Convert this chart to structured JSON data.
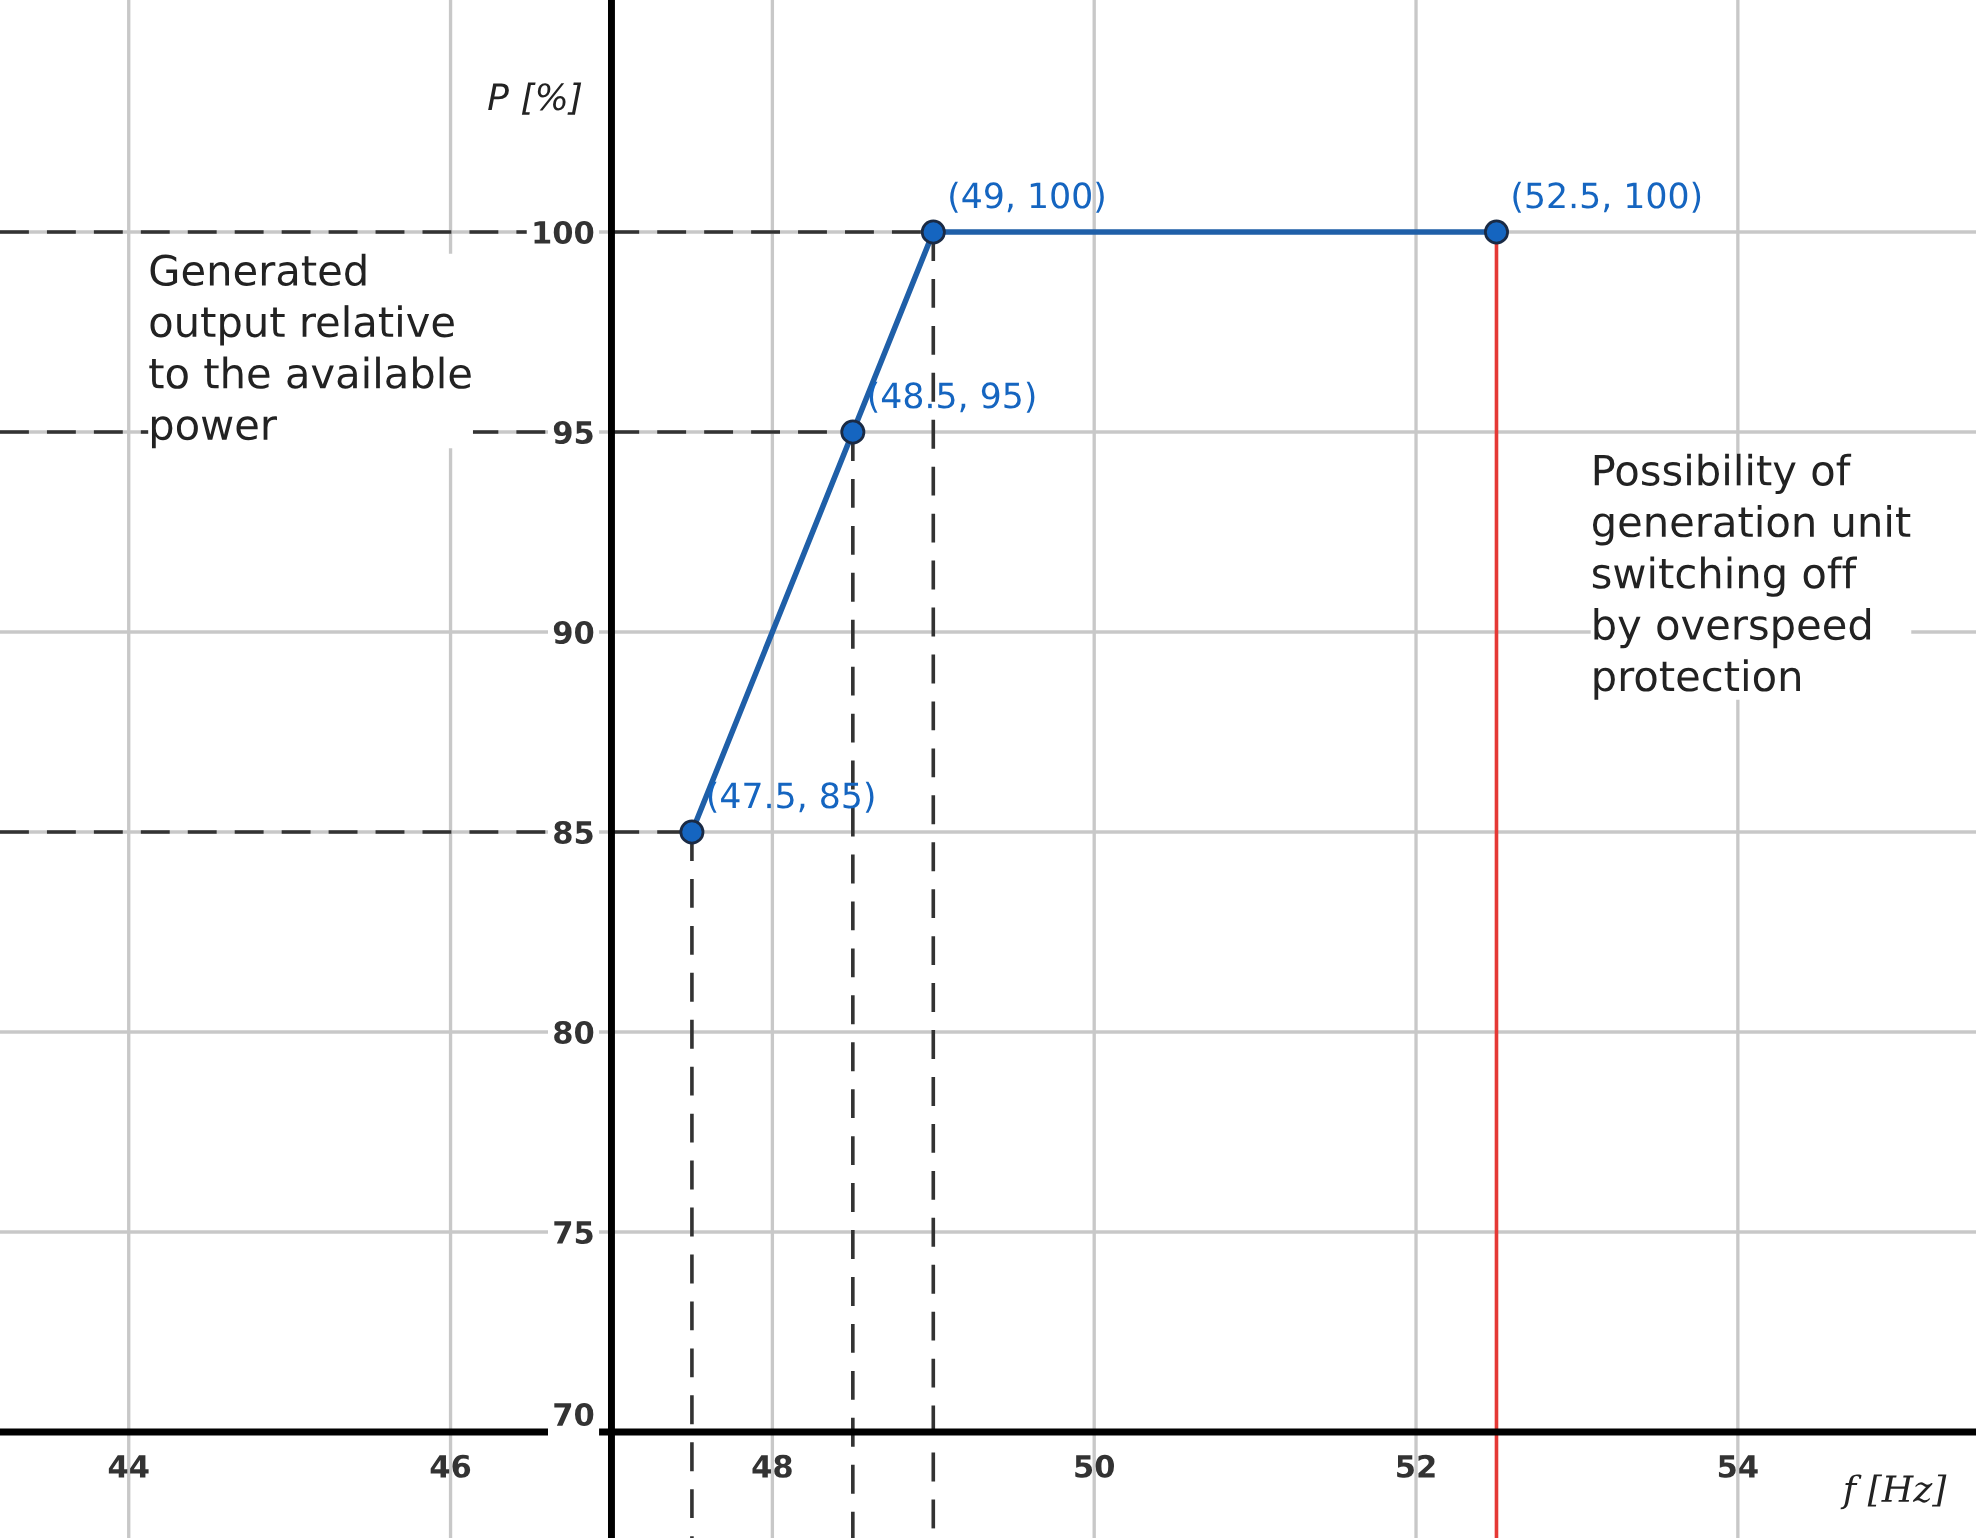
{
  "chart_data": {
    "type": "line",
    "xlabel": "f [Hz]",
    "ylabel": "P [%]",
    "xlim": [
      43.2,
      55.48
    ],
    "ylim": [
      67.35,
      105.8
    ],
    "xticks": [
      44,
      46,
      48,
      50,
      52,
      54
    ],
    "yticks": [
      70,
      75,
      80,
      85,
      90,
      95,
      100
    ],
    "grid": true,
    "series": [
      {
        "color": "#1f5fa8",
        "x": [
          47.5,
          48.5,
          49,
          52.5
        ],
        "values": [
          85,
          95,
          100,
          100
        ],
        "marker": "circle",
        "line_style": "solid"
      },
      {
        "color": "#333333",
        "x": [
          43.2,
          47.5
        ],
        "values": [
          85,
          85
        ],
        "marker": "none",
        "line_style": "dashed"
      },
      {
        "color": "#333333",
        "x": [
          43.2,
          48.5
        ],
        "values": [
          95,
          95
        ],
        "marker": "none",
        "line_style": "dashed"
      },
      {
        "color": "#333333",
        "x": [
          43.2,
          49
        ],
        "values": [
          100,
          100
        ],
        "marker": "none",
        "line_style": "dashed"
      },
      {
        "color": "#333333",
        "x": [
          47.5,
          47.5
        ],
        "values": [
          85,
          67.35
        ],
        "marker": "none",
        "line_style": "dashed"
      },
      {
        "color": "#333333",
        "x": [
          48.5,
          48.5
        ],
        "values": [
          95,
          67.35
        ],
        "marker": "none",
        "line_style": "dashed"
      },
      {
        "color": "#333333",
        "x": [
          49,
          49
        ],
        "values": [
          100,
          67.35
        ],
        "marker": "none",
        "line_style": "dashed"
      },
      {
        "color": "#e53935",
        "x": [
          52.5,
          52.5
        ],
        "values": [
          100,
          67.35
        ],
        "marker": "none",
        "line_style": "solid"
      }
    ],
    "annotations": [
      {
        "text": "(47.5, 85)",
        "x": 47.5,
        "y": 85
      },
      {
        "text": "(48.5, 95)",
        "x": 48.5,
        "y": 95
      },
      {
        "text": "(49, 100)",
        "x": 49,
        "y": 100
      },
      {
        "text": "(52.5, 100)",
        "x": 52.5,
        "y": 100
      },
      "Generated\noutput relative\nto the available\npower",
      "Possibility of\ngeneration unit\nswitching off\nby overspeed\nprotection"
    ]
  }
}
